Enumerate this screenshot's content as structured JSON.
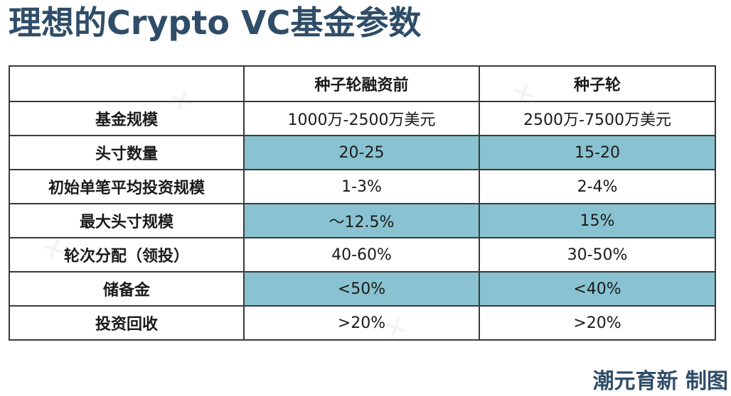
{
  "title": "理想的Crypto VC基金参数",
  "table": {
    "headers": [
      "",
      "种子轮融资前",
      "种子轮"
    ],
    "rows": [
      {
        "label": "基金规模",
        "values": [
          "1000万-2500万美元",
          "2500万-7500万美元"
        ]
      },
      {
        "label": "头寸数量",
        "values": [
          "20-25",
          "15-20"
        ]
      },
      {
        "label": "初始单笔平均投资规模",
        "values": [
          "1-3%",
          "2-4%"
        ]
      },
      {
        "label": "最大头寸规模",
        "values": [
          "～12.5%",
          "15%"
        ]
      },
      {
        "label": "轮次分配（领投）",
        "values": [
          "40-60%",
          "30-50%"
        ]
      },
      {
        "label": "储备金",
        "values": [
          "<50%",
          "<40%"
        ]
      },
      {
        "label": "投资回收",
        "values": [
          ">20%",
          ">20%"
        ]
      }
    ]
  },
  "credit": "潮元育新 制图",
  "colors": {
    "title": "#2f4d68",
    "shaded_cell": "#89c3d1",
    "border": "#3a3a3a"
  }
}
